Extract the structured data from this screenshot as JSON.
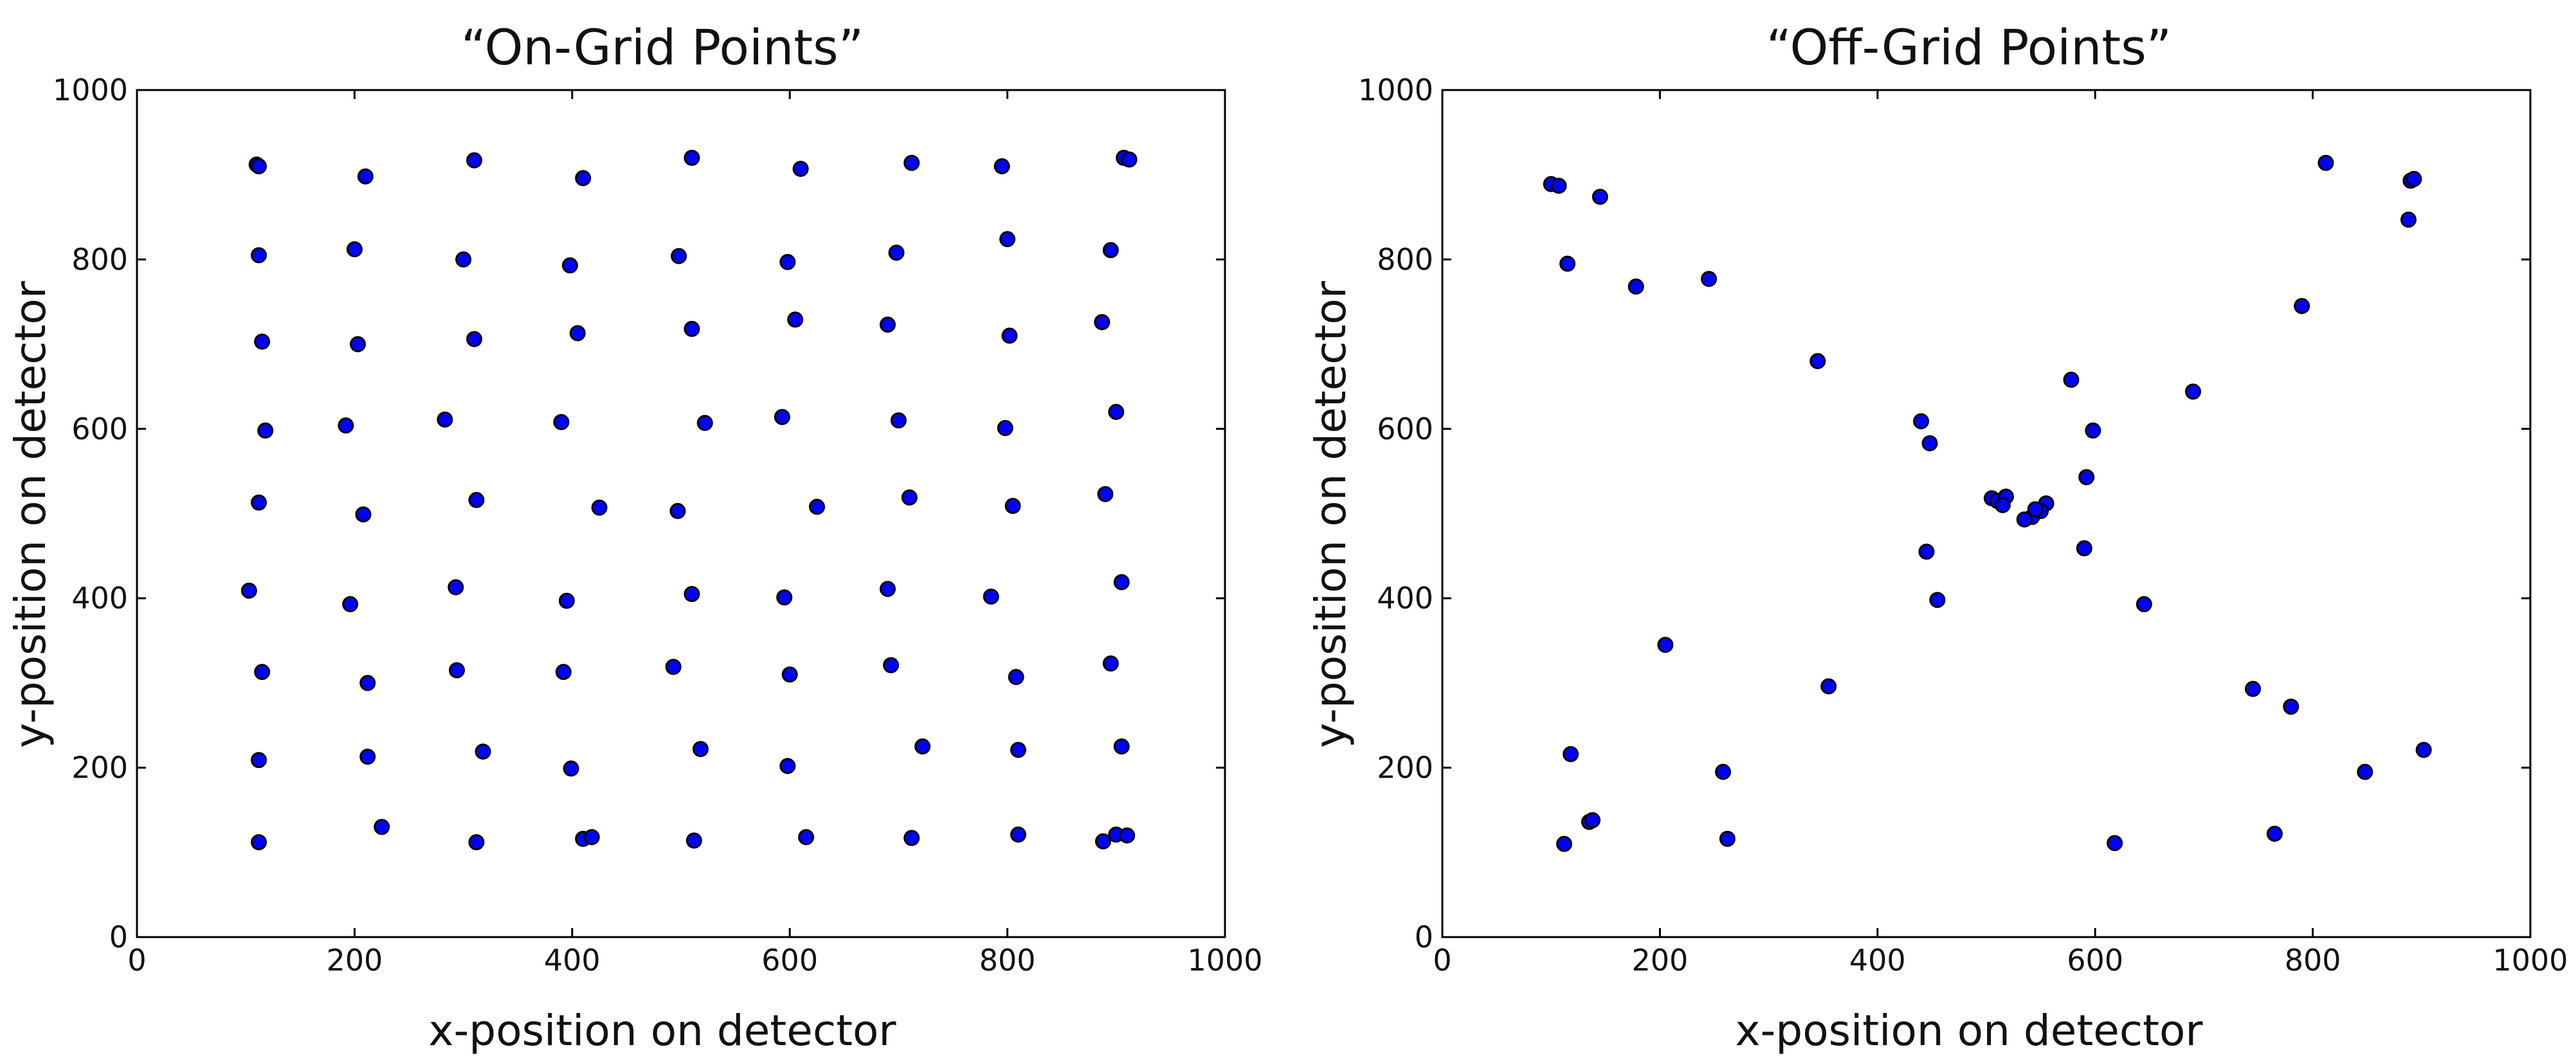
{
  "chart_data": [
    {
      "type": "scatter",
      "title": "“On-Grid Points”",
      "xlabel": "x-position on detector",
      "ylabel": "y-position on detector",
      "xlim": [
        0,
        1000
      ],
      "ylim": [
        0,
        1000
      ],
      "xticks": [
        "0",
        "200",
        "400",
        "600",
        "800",
        "1000"
      ],
      "yticks": [
        "0",
        "200",
        "400",
        "600",
        "800",
        "1000"
      ],
      "grid": false,
      "marker_color": "#0000ff",
      "series": [
        {
          "points": [
            [
              110,
              912
            ],
            [
              112,
              910
            ],
            [
              210,
              898
            ],
            [
              310,
              917
            ],
            [
              410,
              896
            ],
            [
              510,
              920
            ],
            [
              610,
              907
            ],
            [
              712,
              914
            ],
            [
              795,
              910
            ],
            [
              907,
              920
            ],
            [
              912,
              918
            ],
            [
              112,
              805
            ],
            [
              200,
              812
            ],
            [
              300,
              800
            ],
            [
              398,
              793
            ],
            [
              498,
              804
            ],
            [
              598,
              797
            ],
            [
              698,
              808
            ],
            [
              800,
              824
            ],
            [
              895,
              811
            ],
            [
              115,
              703
            ],
            [
              203,
              700
            ],
            [
              310,
              706
            ],
            [
              405,
              713
            ],
            [
              510,
              718
            ],
            [
              605,
              729
            ],
            [
              690,
              723
            ],
            [
              802,
              710
            ],
            [
              887,
              726
            ],
            [
              118,
              598
            ],
            [
              192,
              604
            ],
            [
              283,
              611
            ],
            [
              390,
              608
            ],
            [
              522,
              607
            ],
            [
              593,
              614
            ],
            [
              700,
              610
            ],
            [
              798,
              601
            ],
            [
              900,
              620
            ],
            [
              112,
              513
            ],
            [
              208,
              499
            ],
            [
              312,
              516
            ],
            [
              425,
              507
            ],
            [
              497,
              503
            ],
            [
              625,
              508
            ],
            [
              710,
              519
            ],
            [
              805,
              509
            ],
            [
              890,
              523
            ],
            [
              103,
              409
            ],
            [
              196,
              393
            ],
            [
              293,
              413
            ],
            [
              395,
              397
            ],
            [
              510,
              405
            ],
            [
              595,
              401
            ],
            [
              690,
              411
            ],
            [
              785,
              402
            ],
            [
              905,
              419
            ],
            [
              115,
              313
            ],
            [
              212,
              300
            ],
            [
              294,
              315
            ],
            [
              392,
              313
            ],
            [
              493,
              319
            ],
            [
              600,
              310
            ],
            [
              693,
              321
            ],
            [
              808,
              307
            ],
            [
              895,
              323
            ],
            [
              112,
              209
            ],
            [
              212,
              213
            ],
            [
              318,
              219
            ],
            [
              399,
              199
            ],
            [
              518,
              222
            ],
            [
              598,
              202
            ],
            [
              722,
              225
            ],
            [
              810,
              221
            ],
            [
              905,
              225
            ],
            [
              112,
              112
            ],
            [
              225,
              130
            ],
            [
              312,
              112
            ],
            [
              410,
              116
            ],
            [
              418,
              118
            ],
            [
              512,
              114
            ],
            [
              615,
              118
            ],
            [
              712,
              117
            ],
            [
              810,
              121
            ],
            [
              888,
              113
            ],
            [
              900,
              121
            ],
            [
              910,
              120
            ]
          ]
        }
      ]
    },
    {
      "type": "scatter",
      "title": "“Off-Grid Points”",
      "xlabel": "x-position on detector",
      "ylabel": "y-position on detector",
      "xlim": [
        0,
        1000
      ],
      "ylim": [
        0,
        1000
      ],
      "xticks": [
        "0",
        "200",
        "400",
        "600",
        "800",
        "1000"
      ],
      "yticks": [
        "0",
        "200",
        "400",
        "600",
        "800",
        "1000"
      ],
      "grid": false,
      "marker_color": "#0000ff",
      "series": [
        {
          "points": [
            [
              100,
              889
            ],
            [
              107,
              887
            ],
            [
              145,
              874
            ],
            [
              812,
              914
            ],
            [
              890,
              893
            ],
            [
              893,
              895
            ],
            [
              115,
              795
            ],
            [
              178,
              768
            ],
            [
              245,
              777
            ],
            [
              888,
              847
            ],
            [
              790,
              745
            ],
            [
              345,
              680
            ],
            [
              578,
              658
            ],
            [
              690,
              644
            ],
            [
              440,
              609
            ],
            [
              448,
              583
            ],
            [
              598,
              598
            ],
            [
              592,
              543
            ],
            [
              505,
              518
            ],
            [
              510,
              515
            ],
            [
              518,
              520
            ],
            [
              515,
              510
            ],
            [
              555,
              512
            ],
            [
              550,
              503
            ],
            [
              542,
              496
            ],
            [
              545,
              505
            ],
            [
              535,
              493
            ],
            [
              445,
              455
            ],
            [
              590,
              459
            ],
            [
              455,
              398
            ],
            [
              645,
              393
            ],
            [
              205,
              345
            ],
            [
              355,
              296
            ],
            [
              745,
              293
            ],
            [
              780,
              272
            ],
            [
              118,
              216
            ],
            [
              258,
              195
            ],
            [
              848,
              195
            ],
            [
              902,
              221
            ],
            [
              135,
              136
            ],
            [
              138,
              138
            ],
            [
              262,
              116
            ],
            [
              112,
              110
            ],
            [
              618,
              111
            ],
            [
              765,
              122
            ]
          ]
        }
      ]
    }
  ]
}
